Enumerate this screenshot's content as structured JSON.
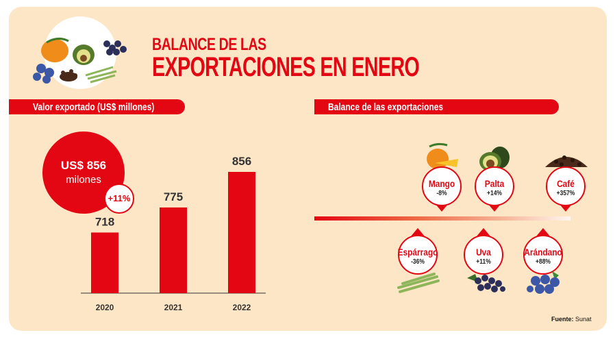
{
  "header": {
    "title_line1": "BALANCE DE LAS",
    "title_line2": "EXPORTACIONES EN ENERO"
  },
  "left_section": {
    "label": "Valor exportado (US$ millones)",
    "highlight_value": "US$ 856",
    "highlight_unit": "milones",
    "growth_badge": "+11%"
  },
  "right_section": {
    "label": "Balance de las exportaciones",
    "products_top": [
      {
        "name": "Mango",
        "change": "-8%",
        "icon": "mango-icon"
      },
      {
        "name": "Palta",
        "change": "+14%",
        "icon": "avocado-icon"
      },
      {
        "name": "Café",
        "change": "+357%",
        "icon": "coffee-beans-icon"
      }
    ],
    "products_bottom": [
      {
        "name": "Espárrago",
        "change": "-36%",
        "icon": "asparagus-icon"
      },
      {
        "name": "Uva",
        "change": "+11%",
        "icon": "grapes-icon"
      },
      {
        "name": "Arándano",
        "change": "+88%",
        "icon": "blueberries-icon"
      }
    ]
  },
  "footer": {
    "source_label": "Fuente:",
    "source_value": "Sunat"
  },
  "colors": {
    "accent": "#e30613",
    "background": "#fde6c5",
    "text_dark": "#333333"
  },
  "chart_data": {
    "type": "bar",
    "title": "Valor exportado (US$ millones)",
    "categories": [
      "2020",
      "2021",
      "2022"
    ],
    "values": [
      718,
      775,
      856
    ],
    "data_labels": [
      "718",
      "775",
      "856"
    ],
    "xlabel": "",
    "ylabel": "",
    "ylim": [
      580,
      900
    ],
    "grid": false
  }
}
